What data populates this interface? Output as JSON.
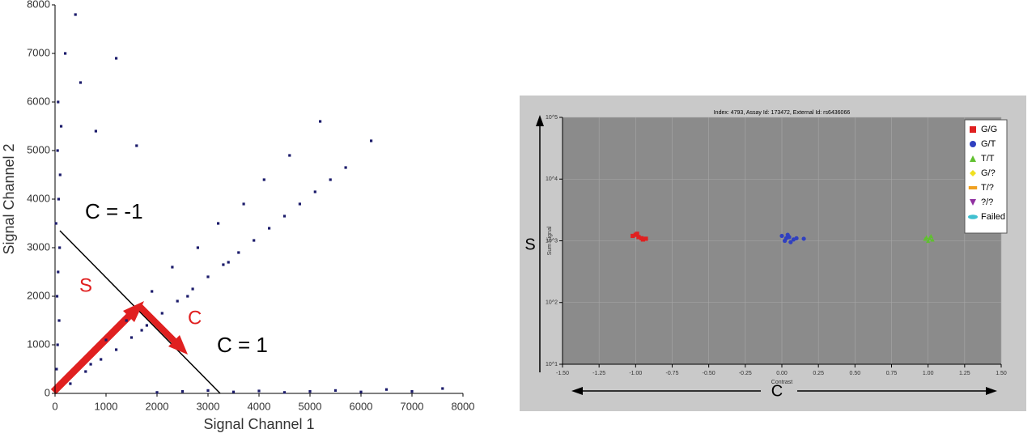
{
  "chart_data": [
    {
      "type": "scatter",
      "xlabel": "Signal Channel 1",
      "ylabel": "Signal Channel 2",
      "xlim": [
        0,
        8000
      ],
      "ylim": [
        0,
        8000
      ],
      "xticks": [
        0,
        1000,
        2000,
        3000,
        4000,
        5000,
        6000,
        7000,
        8000
      ],
      "yticks": [
        0,
        1000,
        2000,
        3000,
        4000,
        5000,
        6000,
        7000,
        8000
      ],
      "annotations": [
        "C = -1",
        "C = 1",
        "S",
        "C"
      ],
      "series": [
        {
          "color": "#1c1c6b",
          "x": [
            30,
            50,
            80,
            40,
            60,
            90,
            20,
            70,
            100,
            50,
            120,
            60,
            200,
            500,
            800,
            1200,
            1600,
            2000,
            2500,
            3000,
            3500,
            4000,
            4500,
            5000,
            5500,
            6000,
            6500,
            7000,
            7600,
            300,
            600,
            900,
            1200,
            1500,
            1800,
            2100,
            2400,
            2700,
            3000,
            3300,
            3600,
            3900,
            4200,
            4500,
            4800,
            5100,
            5400,
            5700,
            1000,
            1400,
            1900,
            2300,
            2800,
            3200,
            3700,
            4100,
            4600,
            5200,
            6200,
            700,
            1700,
            2600,
            3400,
            400
          ],
          "values": [
            500,
            1000,
            1500,
            2000,
            2500,
            3000,
            3500,
            4000,
            4500,
            5000,
            5500,
            6000,
            7000,
            6400,
            5400,
            6900,
            5100,
            20,
            40,
            60,
            30,
            50,
            20,
            40,
            60,
            30,
            80,
            40,
            100,
            200,
            450,
            700,
            900,
            1150,
            1400,
            1650,
            1900,
            2150,
            2400,
            2650,
            2900,
            3150,
            3400,
            3650,
            3900,
            4150,
            4400,
            4650,
            1100,
            1500,
            2100,
            2600,
            3000,
            3500,
            3900,
            4400,
            4900,
            5600,
            5200,
            600,
            1300,
            2000,
            2700,
            7800
          ]
        }
      ]
    },
    {
      "type": "scatter",
      "title": "Index: 4793, Assay Id: 173472, External Id: rs6436066",
      "xlabel": "Contrast",
      "ylabel": "Sum Signal",
      "ylog": true,
      "grid": true,
      "side_labels": [
        "S",
        "C"
      ],
      "xlim": [
        -1.5,
        1.5
      ],
      "ylim": [
        10,
        100000
      ],
      "xticks": [
        {
          "value": -1.5,
          "label": "-1.50"
        },
        {
          "value": -1.25,
          "label": "-1.25"
        },
        {
          "value": -1,
          "label": "-1.00"
        },
        {
          "value": -0.75,
          "label": "-0.75"
        },
        {
          "value": -0.5,
          "label": "-0.50"
        },
        {
          "value": -0.25,
          "label": "-0.25"
        },
        {
          "value": 0,
          "label": "0.00"
        },
        {
          "value": 0.25,
          "label": "0.25"
        },
        {
          "value": 0.5,
          "label": "0.50"
        },
        {
          "value": 0.75,
          "label": "0.75"
        },
        {
          "value": 1,
          "label": "1.00"
        },
        {
          "value": 1.25,
          "label": "1.25"
        },
        {
          "value": 1.5,
          "label": "1.50"
        }
      ],
      "yticks": [
        {
          "value": 10,
          "label": "10^1"
        },
        {
          "value": 100,
          "label": "10^2"
        },
        {
          "value": 1000,
          "label": "10^3"
        },
        {
          "value": 10000,
          "label": "10^4"
        },
        {
          "value": 100000,
          "label": "10^5"
        }
      ],
      "series": [
        {
          "name": "G/G",
          "color": "#e02020",
          "marker": "square",
          "x": [
            -1.0,
            -0.98,
            -0.96,
            -1.02,
            -0.95,
            -0.93,
            -0.99
          ],
          "values": [
            1250,
            1150,
            1100,
            1200,
            1050,
            1080,
            1300
          ]
        },
        {
          "name": "G/T",
          "color": "#3040c0",
          "marker": "circle",
          "x": [
            0.0,
            0.03,
            0.05,
            0.08,
            0.02,
            0.06,
            0.1,
            0.15,
            0.04
          ],
          "values": [
            1200,
            1100,
            1150,
            1050,
            1000,
            950,
            1100,
            1080,
            1250
          ]
        },
        {
          "name": "T/T",
          "color": "#60c030",
          "marker": "triangle",
          "x": [
            0.99,
            1.01,
            1.03,
            1.0,
            1.02,
            0.98
          ],
          "values": [
            1150,
            1100,
            1050,
            1000,
            1200,
            1080
          ]
        },
        {
          "name": "G/?",
          "color": "#f0e020",
          "marker": "diamond",
          "x": [],
          "values": []
        },
        {
          "name": "T/?",
          "color": "#f0a020",
          "marker": "dash",
          "x": [],
          "values": []
        },
        {
          "name": "?/?",
          "color": "#9030a0",
          "marker": "down",
          "x": [],
          "values": []
        },
        {
          "name": "Failed",
          "color": "#40c0d0",
          "marker": "oval",
          "x": [],
          "values": []
        }
      ]
    }
  ]
}
